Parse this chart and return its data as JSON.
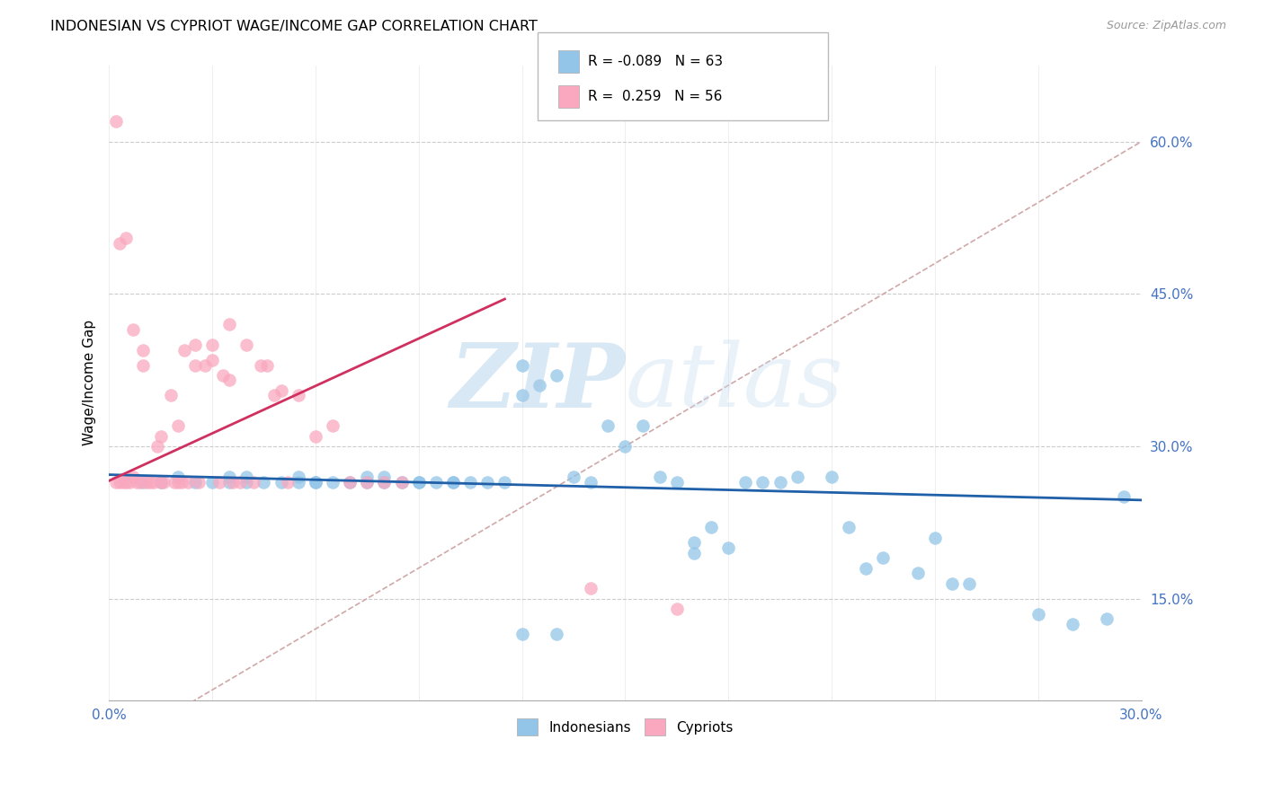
{
  "title": "INDONESIAN VS CYPRIOT WAGE/INCOME GAP CORRELATION CHART",
  "source": "Source: ZipAtlas.com",
  "ylabel": "Wage/Income Gap",
  "yticks": [
    0.15,
    0.3,
    0.45,
    0.6
  ],
  "xlim": [
    0.0,
    0.3
  ],
  "ylim": [
    0.05,
    0.675
  ],
  "blue_R": -0.089,
  "blue_N": 63,
  "pink_R": 0.259,
  "pink_N": 56,
  "blue_color": "#92C5E8",
  "pink_color": "#F9A8C0",
  "blue_line_color": "#2060A8",
  "pink_line_color": "#D03060",
  "diag_color": "#D0A8A8",
  "watermark_zip": "ZIP",
  "watermark_atlas": "atlas",
  "legend_label_blue": "Indonesians",
  "legend_label_pink": "Cypriots",
  "blue_scatter_x": [
    0.01,
    0.015,
    0.02,
    0.025,
    0.03,
    0.035,
    0.035,
    0.04,
    0.04,
    0.045,
    0.05,
    0.055,
    0.055,
    0.06,
    0.06,
    0.065,
    0.07,
    0.075,
    0.075,
    0.08,
    0.08,
    0.085,
    0.09,
    0.09,
    0.095,
    0.1,
    0.1,
    0.105,
    0.11,
    0.115,
    0.12,
    0.12,
    0.125,
    0.13,
    0.135,
    0.14,
    0.145,
    0.15,
    0.155,
    0.16,
    0.165,
    0.17,
    0.17,
    0.175,
    0.18,
    0.185,
    0.19,
    0.195,
    0.2,
    0.21,
    0.215,
    0.22,
    0.225,
    0.235,
    0.24,
    0.245,
    0.25,
    0.27,
    0.28,
    0.29,
    0.12,
    0.13,
    0.295
  ],
  "blue_scatter_y": [
    0.265,
    0.265,
    0.27,
    0.265,
    0.265,
    0.265,
    0.27,
    0.265,
    0.27,
    0.265,
    0.265,
    0.265,
    0.27,
    0.265,
    0.265,
    0.265,
    0.265,
    0.265,
    0.27,
    0.27,
    0.265,
    0.265,
    0.265,
    0.265,
    0.265,
    0.265,
    0.265,
    0.265,
    0.265,
    0.265,
    0.38,
    0.35,
    0.36,
    0.37,
    0.27,
    0.265,
    0.32,
    0.3,
    0.32,
    0.27,
    0.265,
    0.195,
    0.205,
    0.22,
    0.2,
    0.265,
    0.265,
    0.265,
    0.27,
    0.27,
    0.22,
    0.18,
    0.19,
    0.175,
    0.21,
    0.165,
    0.165,
    0.135,
    0.125,
    0.13,
    0.115,
    0.115,
    0.25
  ],
  "pink_scatter_x": [
    0.002,
    0.003,
    0.004,
    0.005,
    0.006,
    0.007,
    0.008,
    0.009,
    0.01,
    0.01,
    0.011,
    0.012,
    0.013,
    0.014,
    0.015,
    0.015,
    0.016,
    0.018,
    0.019,
    0.02,
    0.02,
    0.021,
    0.022,
    0.023,
    0.025,
    0.025,
    0.026,
    0.028,
    0.03,
    0.03,
    0.032,
    0.033,
    0.035,
    0.035,
    0.036,
    0.038,
    0.04,
    0.042,
    0.044,
    0.046,
    0.048,
    0.05,
    0.052,
    0.055,
    0.06,
    0.065,
    0.07,
    0.075,
    0.08,
    0.085,
    0.002,
    0.003,
    0.005,
    0.007,
    0.14,
    0.165
  ],
  "pink_scatter_y": [
    0.265,
    0.265,
    0.265,
    0.265,
    0.265,
    0.27,
    0.265,
    0.265,
    0.38,
    0.395,
    0.265,
    0.265,
    0.265,
    0.3,
    0.265,
    0.31,
    0.265,
    0.35,
    0.265,
    0.265,
    0.32,
    0.265,
    0.395,
    0.265,
    0.38,
    0.4,
    0.265,
    0.38,
    0.4,
    0.385,
    0.265,
    0.37,
    0.365,
    0.42,
    0.265,
    0.265,
    0.4,
    0.265,
    0.38,
    0.38,
    0.35,
    0.355,
    0.265,
    0.35,
    0.31,
    0.32,
    0.265,
    0.265,
    0.265,
    0.265,
    0.62,
    0.5,
    0.505,
    0.415,
    0.16,
    0.14
  ]
}
